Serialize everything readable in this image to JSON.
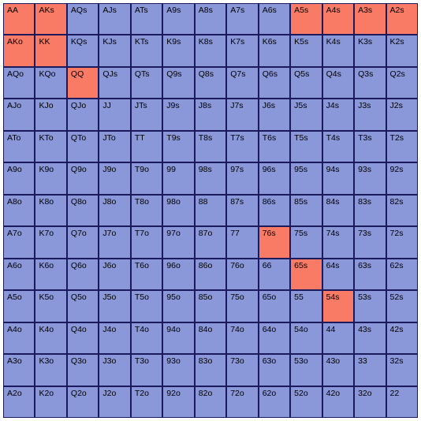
{
  "chart": {
    "type": "heatmap",
    "rows": 13,
    "cols": 13,
    "cell_border_color": "#1a1a5c",
    "colors": {
      "default": "#8a97d9",
      "highlight": "#f97b66"
    },
    "font": {
      "family": "Verdana, Geneva, sans-serif",
      "size_pt": 10.5,
      "weight": 400,
      "color": "#000000"
    },
    "cells": [
      [
        "AA",
        "AKs",
        "AQs",
        "AJs",
        "ATs",
        "A9s",
        "A8s",
        "A7s",
        "A6s",
        "A5s",
        "A4s",
        "A3s",
        "A2s"
      ],
      [
        "AKo",
        "KK",
        "KQs",
        "KJs",
        "KTs",
        "K9s",
        "K8s",
        "K7s",
        "K6s",
        "K5s",
        "K4s",
        "K3s",
        "K2s"
      ],
      [
        "AQo",
        "KQo",
        "QQ",
        "QJs",
        "QTs",
        "Q9s",
        "Q8s",
        "Q7s",
        "Q6s",
        "Q5s",
        "Q4s",
        "Q3s",
        "Q2s"
      ],
      [
        "AJo",
        "KJo",
        "QJo",
        "JJ",
        "JTs",
        "J9s",
        "J8s",
        "J7s",
        "J6s",
        "J5s",
        "J4s",
        "J3s",
        "J2s"
      ],
      [
        "ATo",
        "KTo",
        "QTo",
        "JTo",
        "TT",
        "T9s",
        "T8s",
        "T7s",
        "T6s",
        "T5s",
        "T4s",
        "T3s",
        "T2s"
      ],
      [
        "A9o",
        "K9o",
        "Q9o",
        "J9o",
        "T9o",
        "99",
        "98s",
        "97s",
        "96s",
        "95s",
        "94s",
        "93s",
        "92s"
      ],
      [
        "A8o",
        "K8o",
        "Q8o",
        "J8o",
        "T8o",
        "98o",
        "88",
        "87s",
        "86s",
        "85s",
        "84s",
        "83s",
        "82s"
      ],
      [
        "A7o",
        "K7o",
        "Q7o",
        "J7o",
        "T7o",
        "97o",
        "87o",
        "77",
        "76s",
        "75s",
        "74s",
        "73s",
        "72s"
      ],
      [
        "A6o",
        "K6o",
        "Q6o",
        "J6o",
        "T6o",
        "96o",
        "86o",
        "76o",
        "66",
        "65s",
        "64s",
        "63s",
        "62s"
      ],
      [
        "A5o",
        "K5o",
        "Q5o",
        "J5o",
        "T5o",
        "95o",
        "85o",
        "75o",
        "65o",
        "55",
        "54s",
        "53s",
        "52s"
      ],
      [
        "A4o",
        "K4o",
        "Q4o",
        "J4o",
        "T4o",
        "94o",
        "84o",
        "74o",
        "64o",
        "54o",
        "44",
        "43s",
        "42s"
      ],
      [
        "A3o",
        "K3o",
        "Q3o",
        "J3o",
        "T3o",
        "93o",
        "83o",
        "73o",
        "63o",
        "53o",
        "43o",
        "33",
        "32s"
      ],
      [
        "A2o",
        "K2o",
        "Q2o",
        "J2o",
        "T2o",
        "92o",
        "82o",
        "72o",
        "62o",
        "52o",
        "42o",
        "32o",
        "22"
      ]
    ],
    "highlighted": [
      [
        0,
        0
      ],
      [
        0,
        1
      ],
      [
        0,
        9
      ],
      [
        0,
        10
      ],
      [
        0,
        11
      ],
      [
        0,
        12
      ],
      [
        1,
        0
      ],
      [
        1,
        1
      ],
      [
        2,
        2
      ],
      [
        7,
        8
      ],
      [
        8,
        9
      ],
      [
        9,
        10
      ]
    ]
  }
}
